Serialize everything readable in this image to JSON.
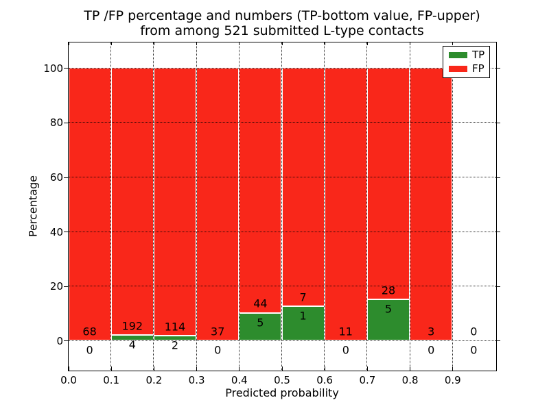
{
  "figure": {
    "title_line1": "TP /FP percentage and numbers (TP-bottom value, FP-upper)",
    "title_line2": "from among 521 submitted L-type contacts"
  },
  "chart_data": {
    "type": "bar",
    "stacked": true,
    "title": "TP /FP percentage and numbers (TP-bottom value, FP-upper) from among 521 submitted L-type contacts",
    "xlabel": "Predicted probability",
    "ylabel": "Percentage",
    "xlim": [
      0.0,
      1.0
    ],
    "ylim": [
      -10.6,
      109.5
    ],
    "xticks": [
      "0.0",
      "0.1",
      "0.2",
      "0.3",
      "0.4",
      "0.5",
      "0.6",
      "0.7",
      "0.8",
      "0.9"
    ],
    "yticks": [
      "0",
      "20",
      "40",
      "60",
      "80",
      "100"
    ],
    "grid": true,
    "grid_style": "dotted",
    "total_contacts": 521,
    "legend": {
      "position": "upper right",
      "entries": [
        {
          "label": "TP",
          "color": "#2d8c2d"
        },
        {
          "label": "FP",
          "color": "#f9271a"
        }
      ]
    },
    "categories": [
      "0.0-0.1",
      "0.1-0.2",
      "0.2-0.3",
      "0.3-0.4",
      "0.4-0.5",
      "0.5-0.6",
      "0.6-0.7",
      "0.7-0.8",
      "0.8-0.9",
      "0.9-1.0"
    ],
    "bins": [
      {
        "x0": 0.0,
        "x1": 0.1,
        "tp": 0,
        "fp": 68
      },
      {
        "x0": 0.1,
        "x1": 0.2,
        "tp": 4,
        "fp": 192
      },
      {
        "x0": 0.2,
        "x1": 0.3,
        "tp": 2,
        "fp": 114
      },
      {
        "x0": 0.3,
        "x1": 0.4,
        "tp": 0,
        "fp": 37
      },
      {
        "x0": 0.4,
        "x1": 0.5,
        "tp": 5,
        "fp": 44
      },
      {
        "x0": 0.5,
        "x1": 0.6,
        "tp": 1,
        "fp": 7
      },
      {
        "x0": 0.6,
        "x1": 0.7,
        "tp": 0,
        "fp": 11
      },
      {
        "x0": 0.7,
        "x1": 0.8,
        "tp": 5,
        "fp": 28
      },
      {
        "x0": 0.8,
        "x1": 0.9,
        "tp": 0,
        "fp": 3
      },
      {
        "x0": 0.9,
        "x1": 1.0,
        "tp": 0,
        "fp": 0
      }
    ],
    "colors": {
      "tp": "#2d8c2d",
      "fp": "#f9271a",
      "bar_edge": "#ffffff",
      "grid": "#000000",
      "text": "#000000",
      "background": "#ffffff"
    }
  }
}
